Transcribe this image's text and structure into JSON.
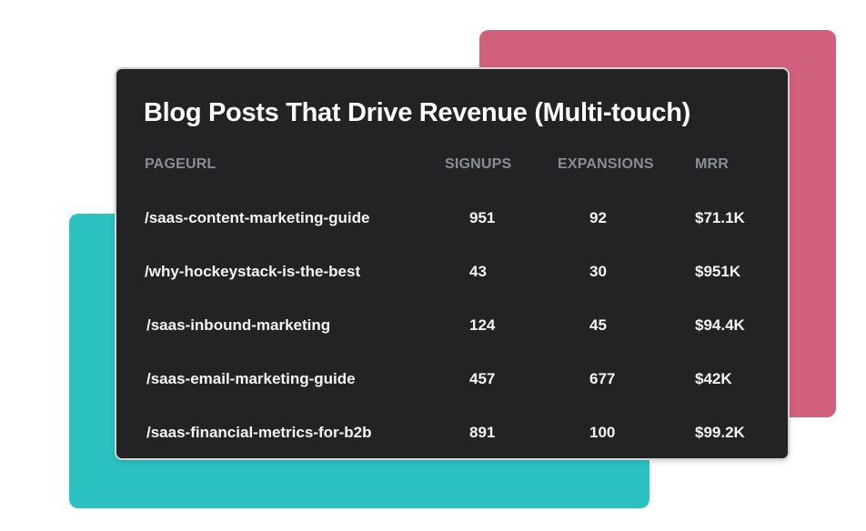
{
  "colors": {
    "teal": "#2cc2c2",
    "pink": "#d0607b",
    "card_bg": "#232325"
  },
  "card": {
    "title": "Blog Posts That Drive Revenue (Multi-touch)"
  },
  "table": {
    "columns": [
      "PAGEURL",
      "SIGNUPS",
      "EXPANSIONS",
      "MRR"
    ],
    "rows": [
      {
        "url": "/saas-content-marketing-guide",
        "signups": "951",
        "expansions": "92",
        "mrr": "$71.1K"
      },
      {
        "url": "/why-hockeystack-is-the-best",
        "signups": "43",
        "expansions": "30",
        "mrr": "$951K"
      },
      {
        "url": "/saas-inbound-marketing",
        "signups": "124",
        "expansions": "45",
        "mrr": "$94.4K"
      },
      {
        "url": "/saas-email-marketing-guide",
        "signups": "457",
        "expansions": "677",
        "mrr": "$42K"
      },
      {
        "url": "/saas-financial-metrics-for-b2b",
        "signups": "891",
        "expansions": "100",
        "mrr": "$99.2K"
      }
    ]
  }
}
